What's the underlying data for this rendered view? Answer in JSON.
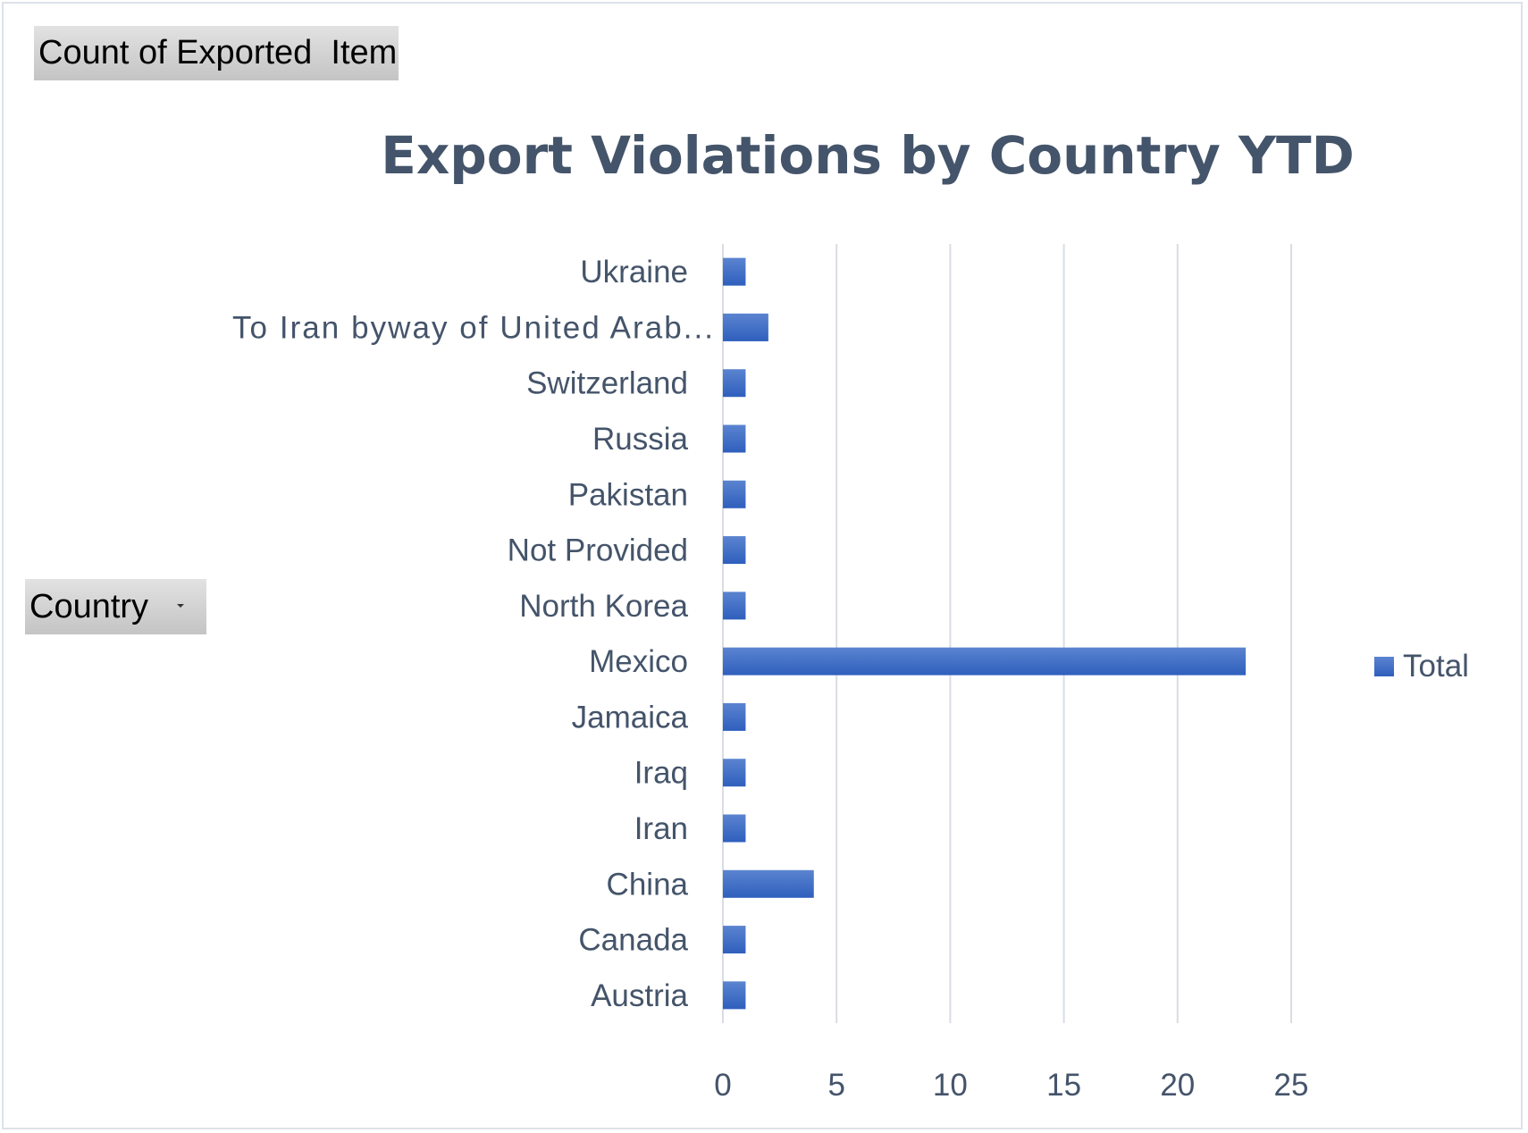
{
  "pivot_fields": {
    "value_field": "Count of Exported  Item",
    "row_field": "Country"
  },
  "chart_data": {
    "type": "bar",
    "orientation": "horizontal",
    "title": "Export Violations by Country YTD",
    "categories": [
      "Austria",
      "Canada",
      "China",
      "Iran",
      "Iraq",
      "Jamaica",
      "Mexico",
      "North Korea",
      "Not Provided",
      "Pakistan",
      "Russia",
      "Switzerland",
      "To Iran  byway of  United Arab...",
      "Ukraine"
    ],
    "series": [
      {
        "name": "Total",
        "values": [
          1,
          1,
          4,
          1,
          1,
          1,
          23,
          1,
          1,
          1,
          1,
          1,
          2,
          1
        ]
      }
    ],
    "xlim": [
      0,
      25
    ],
    "xticks": [
      "0",
      "5",
      "10",
      "15",
      "20",
      "25"
    ],
    "grid": true,
    "legend": "right",
    "colors": {
      "bar": "#4472c4",
      "bar_light": "#5b84d0",
      "grid": "#d9dde3",
      "text": "#44546a"
    }
  }
}
